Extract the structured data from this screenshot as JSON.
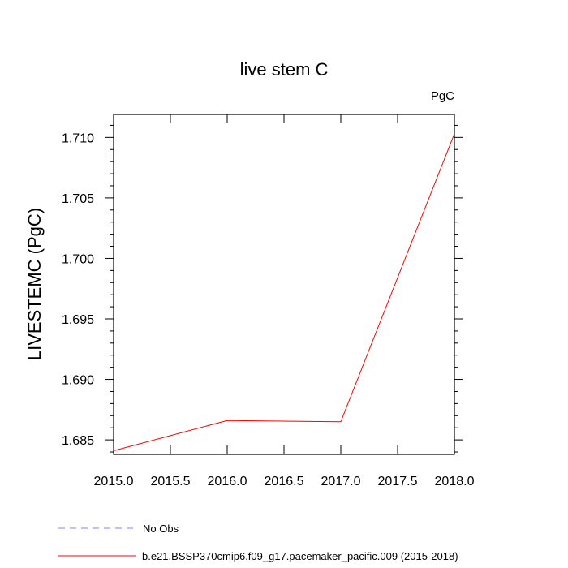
{
  "chart_data": {
    "type": "line",
    "title": "live stem C",
    "units_label": "PgC",
    "ylabel": "LIVESTEMC  (PgC)",
    "xlabel": "",
    "xlim": [
      2015.0,
      2018.0
    ],
    "ylim": [
      1.6838,
      1.7119
    ],
    "x_ticks": [
      "2015.0",
      "2015.5",
      "2016.0",
      "2016.5",
      "2017.0",
      "2017.5",
      "2018.0"
    ],
    "y_ticks": [
      "1.685",
      "1.690",
      "1.695",
      "1.700",
      "1.705",
      "1.710"
    ],
    "series": [
      {
        "name": "b.e21.BSSP370cmip6.f09_g17.pacemaker_pacific.009 (2015-2018)",
        "color": "#ff0000",
        "style": "solid",
        "x": [
          2015,
          2016,
          2017,
          2018
        ],
        "y": [
          1.6841,
          1.6866,
          1.6865,
          1.7103
        ]
      }
    ],
    "legend": [
      {
        "label": "No Obs",
        "color": "#8080ff",
        "style": "dashed"
      },
      {
        "label": "b.e21.BSSP370cmip6.f09_g17.pacemaker_pacific.009 (2015-2018)",
        "color": "#ff0000",
        "style": "solid"
      }
    ],
    "legend_placement": "bottom-left",
    "grid": false
  }
}
